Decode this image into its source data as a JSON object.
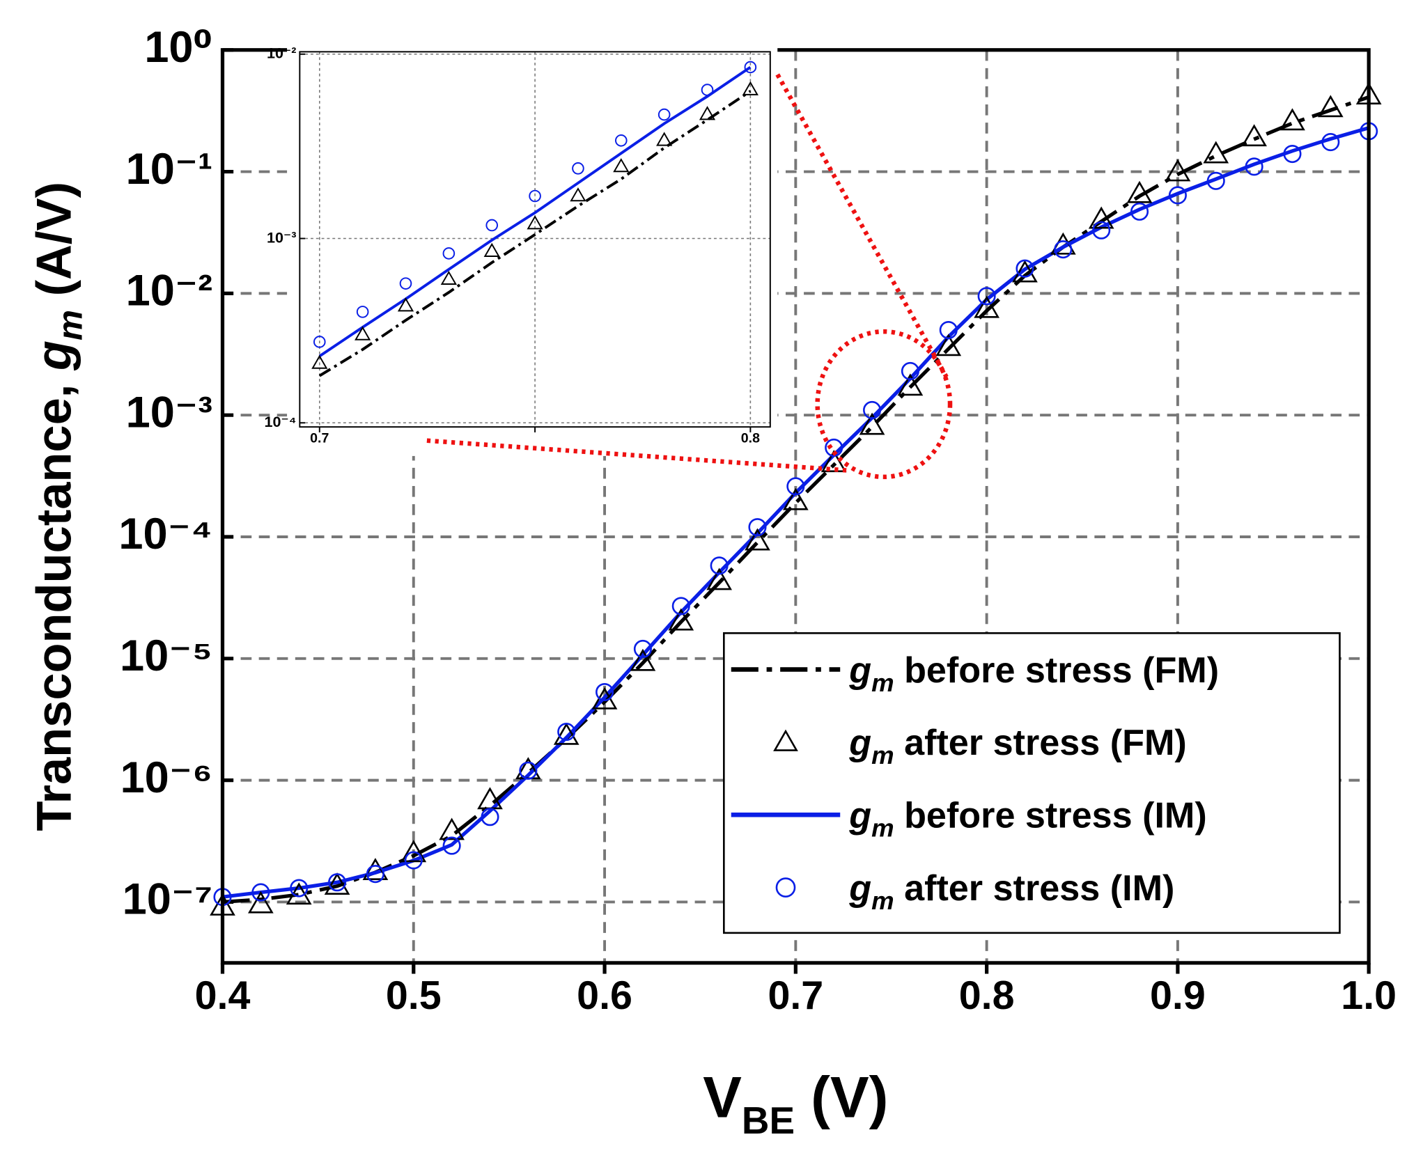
{
  "chart_data": [
    {
      "type": "line",
      "ylabel": [
        "Transconductance, ",
        "g",
        "m",
        " (A/V)"
      ],
      "xlabel": [
        "V",
        "BE",
        " (V)"
      ],
      "xlim": [
        0.4,
        1.0
      ],
      "xticks": [
        0.4,
        0.5,
        0.6,
        0.7,
        0.8,
        0.9,
        {
          "value": 1.0,
          "label": "1.0"
        }
      ],
      "ylim": [
        3.16e-08,
        1
      ],
      "ylog": true,
      "yticks": [
        {
          "value": 1e-07,
          "label": "10⁻⁷"
        },
        {
          "value": 1e-06,
          "label": "10⁻⁶"
        },
        {
          "value": 1e-05,
          "label": "10⁻⁵"
        },
        {
          "value": 0.0001,
          "label": "10⁻⁴"
        },
        {
          "value": 0.001,
          "label": "10⁻³"
        },
        {
          "value": 0.01,
          "label": "10⁻²"
        },
        {
          "value": 0.1,
          "label": "10⁻¹"
        },
        {
          "value": 1,
          "label": "10⁰"
        }
      ],
      "grid": true,
      "legend": "lower right",
      "x": [
        0.4,
        0.42,
        0.44,
        0.46,
        0.48,
        0.5,
        0.52,
        0.54,
        0.56,
        0.58,
        0.6,
        0.62,
        0.64,
        0.66,
        0.68,
        0.7,
        0.72,
        0.74,
        0.76,
        0.78,
        0.8,
        0.82,
        0.84,
        0.86,
        0.88,
        0.9,
        0.92,
        0.94,
        0.96,
        0.98,
        1.0
      ],
      "series": [
        {
          "name": "gm before stress (FM)",
          "color": "#000000",
          "style": "dashdot",
          "values": [
            1e-07,
            1.05e-07,
            1.15e-07,
            1.35e-07,
            1.75e-07,
            2.4e-07,
            3.5e-07,
            6.2e-07,
            1.15e-06,
            2.2e-06,
            4.4e-06,
            9.2e-06,
            2e-05,
            4.2e-05,
            9e-05,
            0.00019,
            0.00039,
            0.0008,
            0.0017,
            0.0035,
            0.0072,
            0.014,
            0.024,
            0.039,
            0.063,
            0.095,
            0.135,
            0.185,
            0.25,
            0.32,
            0.41
          ]
        },
        {
          "name": "gm after stress (FM)",
          "color": "#000000",
          "style": "triangle",
          "values": [
            9.1e-08,
            9.5e-08,
            1.12e-07,
            1.35e-07,
            1.78e-07,
            2.5e-07,
            3.8e-07,
            6.8e-07,
            1.2e-06,
            2.3e-06,
            4.5e-06,
            9.3e-06,
            2e-05,
            4.3e-05,
            9.1e-05,
            0.000195,
            0.0004,
            0.00081,
            0.0017,
            0.0036,
            0.0074,
            0.0145,
            0.0245,
            0.04,
            0.065,
            0.098,
            0.138,
            0.19,
            0.257,
            0.33,
            0.42
          ]
        },
        {
          "name": "gm before stress (IM)",
          "color": "#0a1fe6",
          "style": "solid",
          "values": [
            1.1e-07,
            1.2e-07,
            1.3e-07,
            1.45e-07,
            1.74e-07,
            2.19e-07,
            2.95e-07,
            5.6e-07,
            1.1e-06,
            2.24e-06,
            4.8e-06,
            1.07e-05,
            2.4e-05,
            5.1e-05,
            0.000107,
            0.00023,
            0.00047,
            0.00095,
            0.002,
            0.0044,
            0.0089,
            0.0158,
            0.024,
            0.035,
            0.049,
            0.066,
            0.087,
            0.115,
            0.148,
            0.186,
            0.229
          ]
        },
        {
          "name": "gm after stress (IM)",
          "color": "#0a1fe6",
          "style": "circle",
          "values": [
            1.1e-07,
            1.2e-07,
            1.3e-07,
            1.45e-07,
            1.7e-07,
            2.2e-07,
            2.9e-07,
            5e-07,
            1.2e-06,
            2.5e-06,
            5.3e-06,
            1.2e-05,
            2.7e-05,
            5.8e-05,
            0.00012,
            0.00026,
            0.00054,
            0.0011,
            0.0023,
            0.005,
            0.0095,
            0.016,
            0.023,
            0.033,
            0.047,
            0.064,
            0.084,
            0.11,
            0.14,
            0.175,
            0.215
          ]
        }
      ]
    },
    {
      "type": "line",
      "xlim": [
        0.6954,
        0.8046
      ],
      "xticks": [
        0.7,
        {
          "value": 0.75,
          "label": null
        },
        0.8
      ],
      "ylim": [
        9.5e-05,
        0.0103
      ],
      "ylog": true,
      "yticks": [
        {
          "value": 0.0001,
          "label": "10⁻⁴"
        },
        {
          "value": 0.001,
          "label": "10⁻³"
        },
        {
          "value": 0.01,
          "label": "10⁻²"
        }
      ],
      "grid": true,
      "x": [
        0.7,
        0.71,
        0.72,
        0.73,
        0.74,
        0.75,
        0.76,
        0.77,
        0.78,
        0.79,
        0.8
      ],
      "series": [
        {
          "color": "#000000",
          "style": "dashdot",
          "values": [
            0.00018,
            0.00025,
            0.00036,
            0.00051,
            0.00074,
            0.00105,
            0.0015,
            0.0021,
            0.0031,
            0.0044,
            0.0063
          ]
        },
        {
          "color": "#000000",
          "style": "triangle",
          "values": [
            0.00021,
            0.0003,
            0.00043,
            0.0006,
            0.00085,
            0.0012,
            0.0017,
            0.00245,
            0.0034,
            0.0047,
            0.0064
          ]
        },
        {
          "color": "#0a1fe6",
          "style": "solid",
          "values": [
            0.00023,
            0.00033,
            0.00047,
            0.00068,
            0.00098,
            0.00138,
            0.002,
            0.0029,
            0.0042,
            0.0059,
            0.0085
          ]
        },
        {
          "color": "#0a1fe6",
          "style": "circle",
          "values": [
            0.000275,
            0.0004,
            0.00057,
            0.00083,
            0.00118,
            0.0017,
            0.0024,
            0.0034,
            0.0047,
            0.0064,
            0.0085
          ]
        }
      ]
    }
  ]
}
